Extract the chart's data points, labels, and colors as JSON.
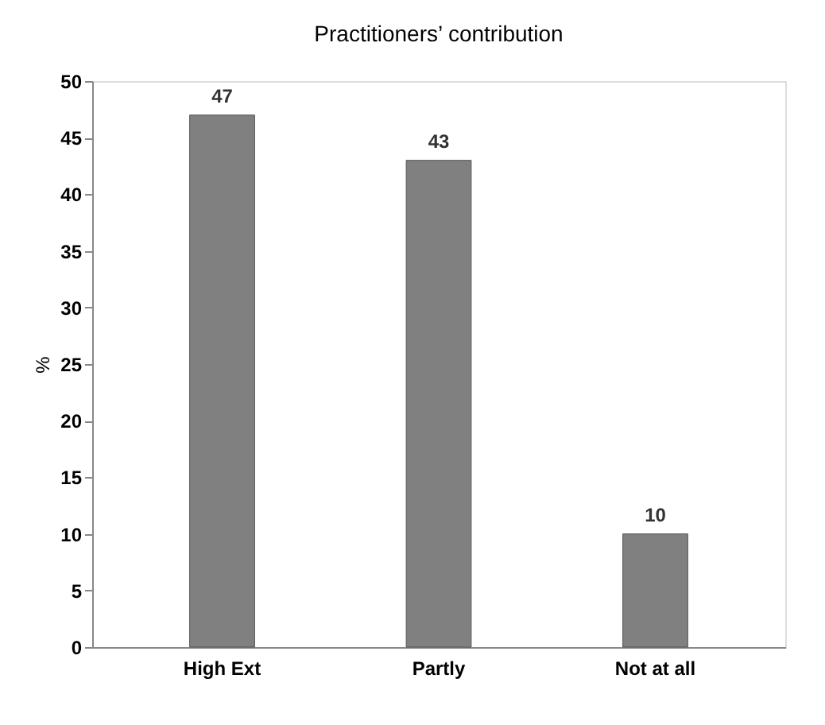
{
  "chart_data": {
    "type": "bar",
    "title": "Practitioners’ contribution",
    "ylabel": "%",
    "categories": [
      "High Ext",
      "Partly",
      "Not at all"
    ],
    "values": [
      47,
      43,
      10
    ],
    "color": "#808080",
    "data_labels": true,
    "ylim": [
      0,
      50
    ],
    "yticks": [
      0,
      5,
      10,
      15,
      20,
      25,
      30,
      35,
      40,
      45,
      50
    ],
    "grid": false
  }
}
